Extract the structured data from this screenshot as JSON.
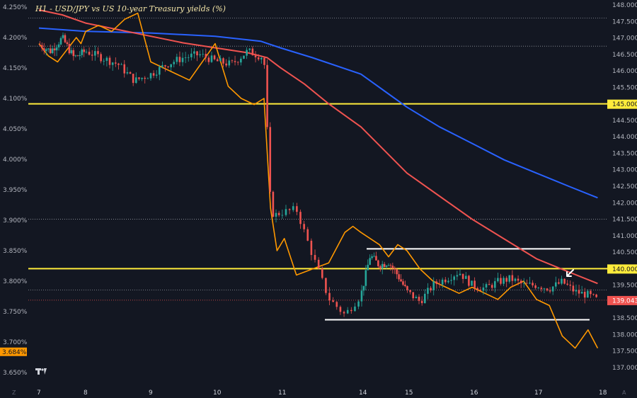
{
  "chart_data": {
    "type": "line",
    "title": "H1 - USD/JPY vs US 10-year Treasury yields (%)",
    "x_ticks": [
      "7",
      "8",
      "9",
      "10",
      "11",
      "14",
      "15",
      "16",
      "17",
      "18"
    ],
    "left_axis": {
      "ticks": [
        "4.250%",
        "4.200%",
        "4.150%",
        "4.100%",
        "4.050%",
        "4.000%",
        "3.950%",
        "3.900%",
        "3.850%",
        "3.800%",
        "3.750%",
        "3.700%",
        "3.650%"
      ],
      "range": [
        3.64,
        4.26
      ],
      "current_value_label": "3.684%",
      "current_value": 3.684
    },
    "right_axis": {
      "ticks": [
        "148.000",
        "147.500",
        "147.000",
        "146.500",
        "146.000",
        "145.500",
        "145.000",
        "144.500",
        "144.000",
        "143.500",
        "143.000",
        "142.500",
        "142.000",
        "141.500",
        "141.000",
        "140.500",
        "140.000",
        "139.500",
        "139.000",
        "138.500",
        "138.000",
        "137.500",
        "137.000"
      ],
      "range": [
        136.75,
        148.1
      ],
      "current_price_label": "139.043",
      "current_price": 139.043,
      "level_145_label": "145.000",
      "level_140_label": "140.000"
    },
    "horizontal_levels": [
      {
        "value": 145.0,
        "color": "#ffeb3b",
        "kind": "resistance"
      },
      {
        "value": 140.0,
        "color": "#ffeb3b",
        "kind": "resistance"
      },
      {
        "value": 140.6,
        "color": "#ffffff",
        "kind": "range-top"
      },
      {
        "value": 138.45,
        "color": "#ffffff",
        "kind": "range-bottom"
      }
    ],
    "dotted_levels": [
      147.6,
      146.75,
      141.5,
      139.35
    ],
    "series": [
      {
        "color": "#2962ff",
        "kind": "moving-average-200",
        "x": [
          0,
          1,
          2,
          3,
          3.7,
          4,
          4.4,
          5,
          5.5,
          6,
          6.5,
          7,
          7.5,
          8,
          8.5,
          8.95
        ],
        "values": [
          147.3,
          147.2,
          147.15,
          147.05,
          146.9,
          146.7,
          146.4,
          145.9,
          145.4,
          144.9,
          144.3,
          143.8,
          143.3,
          142.9,
          142.5,
          142.15
        ]
      },
      {
        "color": "#ef5350",
        "kind": "moving-average-50",
        "x": [
          0,
          0.5,
          1,
          1.5,
          2,
          2.5,
          3,
          3.5,
          3.8,
          4,
          4.3,
          4.6,
          5,
          5.5,
          6,
          6.5,
          7,
          7.5,
          8,
          8.5,
          8.95
        ],
        "values": [
          147.85,
          147.7,
          147.45,
          147.25,
          147.05,
          146.85,
          146.7,
          146.55,
          146.4,
          146.1,
          145.6,
          145.0,
          144.3,
          143.6,
          142.9,
          142.2,
          141.5,
          140.9,
          140.3,
          139.9,
          139.55
        ]
      },
      {
        "color": "#ff9800",
        "kind": "us-10y-yield-percent",
        "x": [
          0,
          0.2,
          0.4,
          0.6,
          0.8,
          0.9,
          1,
          1.2,
          1.4,
          1.6,
          1.8,
          2,
          2.2,
          2.4,
          2.6,
          2.8,
          3,
          3.2,
          3.4,
          3.6,
          3.75,
          3.85,
          3.95,
          4.05,
          4.2,
          4.4,
          4.6,
          4.8,
          4.9,
          5,
          5.2,
          5.4,
          5.6,
          5.8,
          6,
          6.2,
          6.4,
          6.6,
          6.8,
          7,
          7.2,
          7.4,
          7.6,
          7.8,
          8,
          8.2,
          8.4,
          8.6,
          8.8,
          8.95
        ],
        "values": [
          4.19,
          4.17,
          4.16,
          4.18,
          4.2,
          4.19,
          4.21,
          4.22,
          4.21,
          4.23,
          4.24,
          4.16,
          4.15,
          4.14,
          4.13,
          4.16,
          4.19,
          4.12,
          4.1,
          4.09,
          4.1,
          3.92,
          3.85,
          3.87,
          3.81,
          3.82,
          3.83,
          3.88,
          3.89,
          3.88,
          3.87,
          3.86,
          3.84,
          3.86,
          3.85,
          3.82,
          3.8,
          3.79,
          3.78,
          3.79,
          3.78,
          3.77,
          3.79,
          3.8,
          3.77,
          3.76,
          3.71,
          3.69,
          3.72,
          3.69
        ]
      },
      {
        "color": "candles",
        "kind": "usd-jpy-price",
        "x": [
          0,
          0.25,
          0.5,
          0.75,
          1,
          1.25,
          1.5,
          1.75,
          2,
          2.25,
          2.5,
          2.75,
          3,
          3.25,
          3.5,
          3.75,
          3.8,
          3.85,
          3.9,
          4,
          4.2,
          4.4,
          4.6,
          4.8,
          5,
          5.2,
          5.4,
          5.6,
          5.8,
          6,
          6.2,
          6.4,
          6.6,
          6.8,
          7,
          7.2,
          7.4,
          7.6,
          7.8,
          8,
          8.2,
          8.4,
          8.6,
          8.8,
          8.95
        ],
        "values": [
          146.8,
          146.6,
          147.0,
          146.4,
          146.6,
          146.4,
          146.2,
          145.7,
          145.9,
          146.2,
          146.4,
          146.5,
          146.3,
          146.2,
          146.6,
          146.4,
          144.2,
          142.0,
          141.6,
          141.7,
          141.8,
          140.4,
          139.1,
          138.6,
          139.2,
          140.4,
          140.1,
          140.2,
          139.8,
          139.3,
          139.0,
          139.5,
          139.7,
          139.9,
          139.5,
          139.4,
          139.6,
          139.7,
          139.5,
          139.5,
          139.4,
          139.6,
          139.3,
          139.2,
          139.04
        ]
      }
    ]
  },
  "corner_left": "Z",
  "corner_right": "A"
}
